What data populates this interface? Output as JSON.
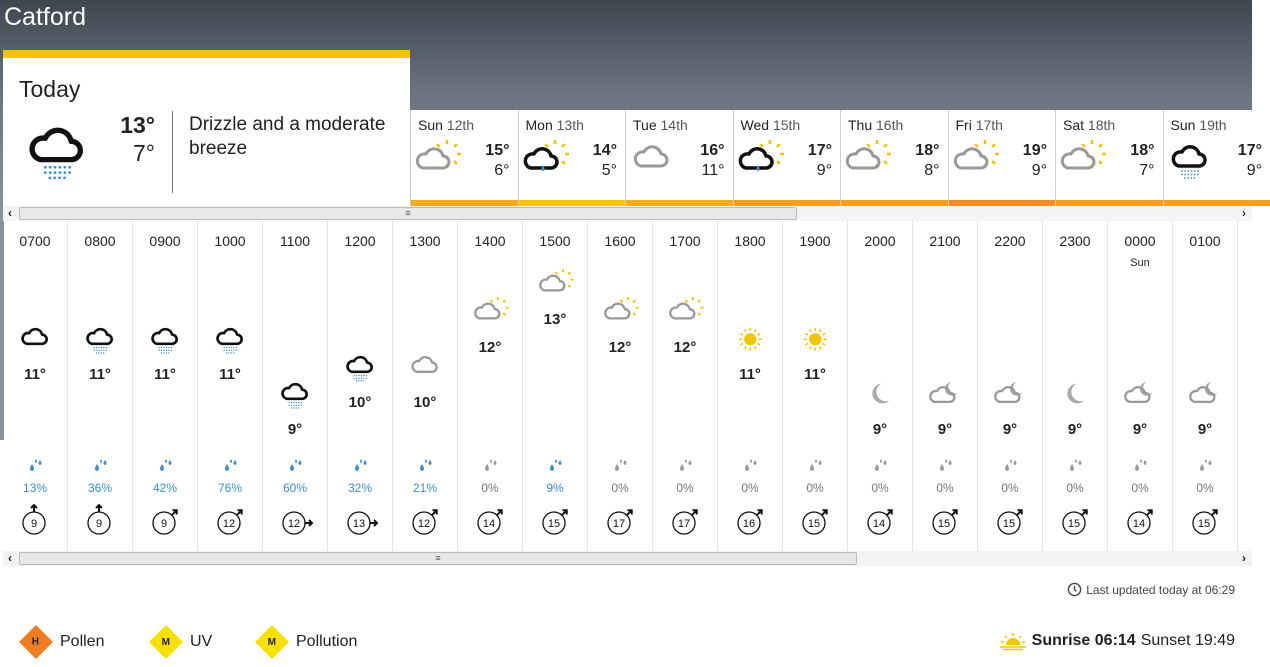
{
  "location": "Catford",
  "colors": {
    "accent": "#f5c400",
    "rain": "#3a8fd6",
    "grey": "#999999"
  },
  "today": {
    "label": "Today",
    "icon": "cloud-drizzle",
    "high": "13°",
    "low": "7°",
    "description": "Drizzle and a moderate breeze"
  },
  "days": [
    {
      "dow": "Sun",
      "date": "12th",
      "icon": "sun-cloud-grey",
      "high": "15°",
      "low": "6°",
      "bar": "#f7a81b"
    },
    {
      "dow": "Mon",
      "date": "13th",
      "icon": "sun-cloud-rain",
      "high": "14°",
      "low": "5°",
      "bar": "#f8c413"
    },
    {
      "dow": "Tue",
      "date": "14th",
      "icon": "cloud-grey",
      "high": "16°",
      "low": "11°",
      "bar": "#f7ae1a"
    },
    {
      "dow": "Wed",
      "date": "15th",
      "icon": "sun-cloud-rain",
      "high": "17°",
      "low": "9°",
      "bar": "#f59d20"
    },
    {
      "dow": "Thu",
      "date": "16th",
      "icon": "sun-cloud-grey",
      "high": "18°",
      "low": "8°",
      "bar": "#f59d20"
    },
    {
      "dow": "Fri",
      "date": "17th",
      "icon": "sun-cloud-grey",
      "high": "19°",
      "low": "9°",
      "bar": "#f28a25"
    },
    {
      "dow": "Sat",
      "date": "18th",
      "icon": "sun-cloud-grey",
      "high": "18°",
      "low": "7°",
      "bar": "#f59d20"
    },
    {
      "dow": "Sun",
      "date": "19th",
      "icon": "cloud-drizzle",
      "high": "17°",
      "low": "9°",
      "bar": "#f59d20"
    }
  ],
  "hours": [
    {
      "time": "0700",
      "icon": "cloud",
      "temp": 11,
      "rain": "13%",
      "wind": 9,
      "dir": 0
    },
    {
      "time": "0800",
      "icon": "cloud-drizzle",
      "temp": 11,
      "rain": "36%",
      "wind": 9,
      "dir": 0
    },
    {
      "time": "0900",
      "icon": "cloud-drizzle",
      "temp": 11,
      "rain": "42%",
      "wind": 9,
      "dir": 45
    },
    {
      "time": "1000",
      "icon": "cloud-drizzle",
      "temp": 11,
      "rain": "76%",
      "wind": 12,
      "dir": 45
    },
    {
      "time": "1100",
      "icon": "cloud-drizzle",
      "temp": 9,
      "rain": "60%",
      "wind": 12,
      "dir": 90
    },
    {
      "time": "1200",
      "icon": "cloud-drizzle",
      "temp": 10,
      "rain": "32%",
      "wind": 13,
      "dir": 90
    },
    {
      "time": "1300",
      "icon": "cloud-grey",
      "temp": 10,
      "rain": "21%",
      "wind": 12,
      "dir": 45
    },
    {
      "time": "1400",
      "icon": "sun-cloud-grey",
      "temp": 12,
      "rain": "0%",
      "wind": 14,
      "dir": 45
    },
    {
      "time": "1500",
      "icon": "sun-cloud-grey",
      "temp": 13,
      "rain": "9%",
      "wind": 15,
      "dir": 45
    },
    {
      "time": "1600",
      "icon": "sun-cloud-grey",
      "temp": 12,
      "rain": "0%",
      "wind": 17,
      "dir": 45
    },
    {
      "time": "1700",
      "icon": "sun-cloud-grey",
      "temp": 12,
      "rain": "0%",
      "wind": 17,
      "dir": 45
    },
    {
      "time": "1800",
      "icon": "sun",
      "temp": 11,
      "rain": "0%",
      "wind": 16,
      "dir": 45
    },
    {
      "time": "1900",
      "icon": "sun",
      "temp": 11,
      "rain": "0%",
      "wind": 15,
      "dir": 45
    },
    {
      "time": "2000",
      "icon": "moon",
      "temp": 9,
      "rain": "0%",
      "wind": 14,
      "dir": 45
    },
    {
      "time": "2100",
      "icon": "moon-cloud",
      "temp": 9,
      "rain": "0%",
      "wind": 15,
      "dir": 45
    },
    {
      "time": "2200",
      "icon": "moon-cloud",
      "temp": 9,
      "rain": "0%",
      "wind": 15,
      "dir": 45
    },
    {
      "time": "2300",
      "icon": "moon",
      "temp": 9,
      "rain": "0%",
      "wind": 15,
      "dir": 45
    },
    {
      "time": "0000",
      "sub": "Sun",
      "icon": "moon-cloud",
      "temp": 9,
      "rain": "0%",
      "wind": 14,
      "dir": 45
    },
    {
      "time": "0100",
      "icon": "moon-cloud",
      "temp": 9,
      "rain": "0%",
      "wind": 15,
      "dir": 45
    }
  ],
  "updated": "Last updated today at 06:29",
  "environment": [
    {
      "label": "Pollen",
      "level": "H",
      "color": "#f07d22"
    },
    {
      "label": "UV",
      "level": "M",
      "color": "#f9e000"
    },
    {
      "label": "Pollution",
      "level": "M",
      "color": "#f9e000"
    }
  ],
  "sunrise_label": "Sunrise 06:14",
  "sunset_label": "Sunset 19:49"
}
